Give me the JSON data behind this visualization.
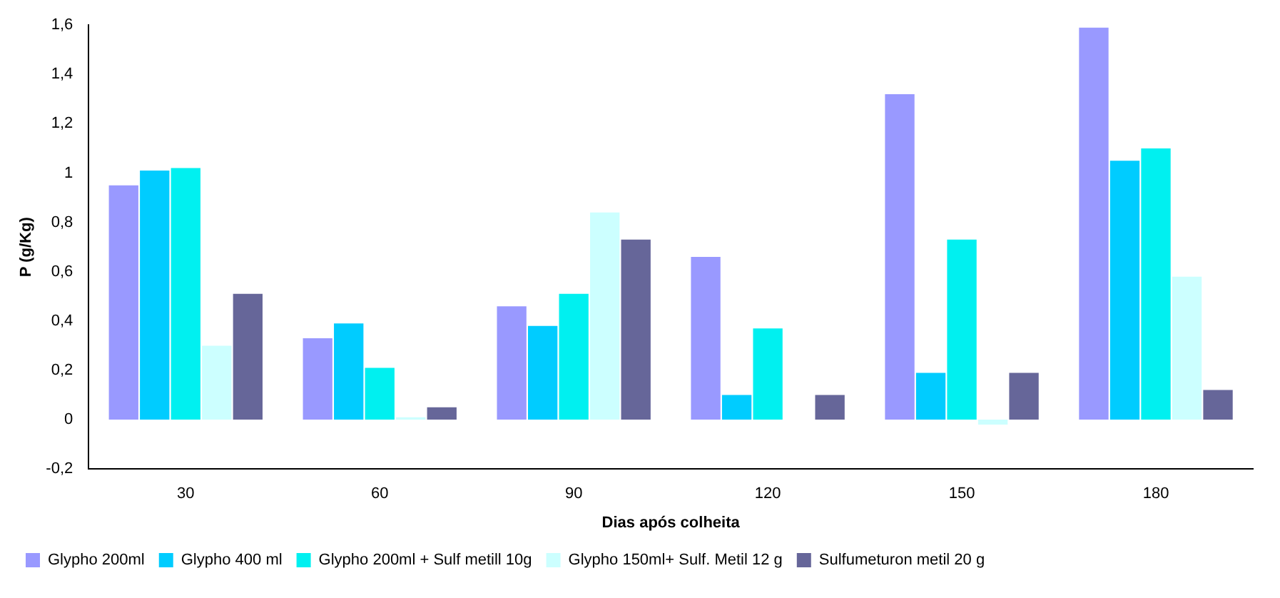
{
  "chart_data": {
    "type": "bar",
    "xlabel": "Dias após colheita",
    "ylabel": "P (g/Kg)",
    "categories": [
      "30",
      "60",
      "90",
      "120",
      "150",
      "180"
    ],
    "series": [
      {
        "name": "Glypho 200ml",
        "color": "#9999ff",
        "values": [
          0.95,
          0.33,
          0.46,
          0.66,
          1.32,
          1.59
        ]
      },
      {
        "name": "Glypho 400 ml",
        "color": "#00ccff",
        "values": [
          1.01,
          0.39,
          0.38,
          0.1,
          0.19,
          1.05
        ]
      },
      {
        "name": "Glypho 200ml + Sulf metill 10g",
        "color": "#00f0f0",
        "values": [
          1.02,
          0.21,
          0.51,
          0.37,
          0.73,
          1.1
        ]
      },
      {
        "name": "Glypho 150ml+ Sulf. Metil 12 g",
        "color": "#ccffff",
        "values": [
          0.3,
          0.01,
          0.84,
          0.0,
          -0.02,
          0.58
        ]
      },
      {
        "name": "Sulfumeturon metil 20 g",
        "color": "#666699",
        "values": [
          0.51,
          0.05,
          0.73,
          0.1,
          0.19,
          0.12
        ]
      }
    ],
    "ylim": [
      -0.2,
      1.6
    ],
    "yticks": [
      {
        "value": -0.2,
        "label": "-0,2"
      },
      0,
      {
        "value": 0.2,
        "label": "0,2"
      },
      {
        "value": 0.4,
        "label": "0,4"
      },
      {
        "value": 0.6,
        "label": "0,6"
      },
      {
        "value": 0.8,
        "label": "0,8"
      },
      1,
      {
        "value": 1.2,
        "label": "1,2"
      },
      {
        "value": 1.4,
        "label": "1,4"
      },
      {
        "value": 1.6,
        "label": "1,6"
      }
    ],
    "grid": false,
    "legend": "bottom"
  }
}
